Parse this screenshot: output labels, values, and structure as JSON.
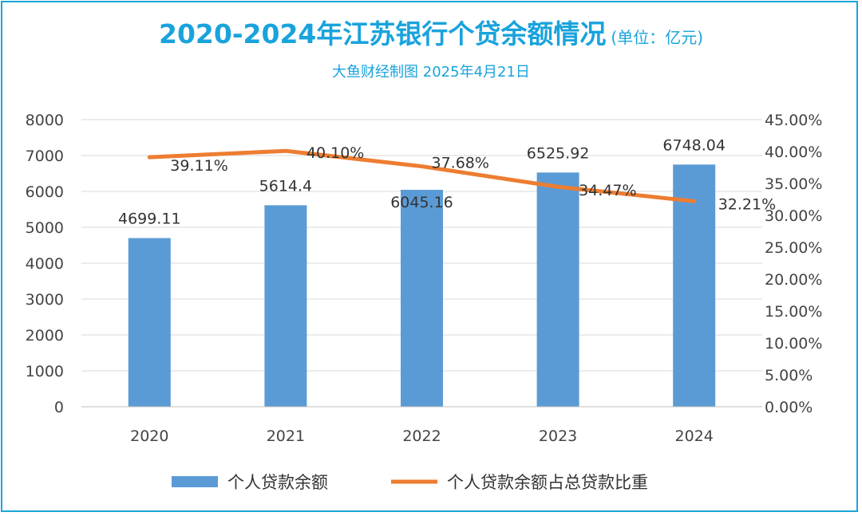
{
  "header": {
    "title": "2020-2024年江苏银行个贷余额情况",
    "unit": "(单位：亿元)",
    "subtitle": "大鱼财经制图 2025年4月21日"
  },
  "colors": {
    "accent": "#19a3dc",
    "bar": "#5b9bd5",
    "line": "#ed7d31",
    "grid": "#d9d9d9",
    "text": "#333333"
  },
  "chart_data": {
    "type": "bar",
    "title": "2020-2024年江苏银行个贷余额情况",
    "categories": [
      "2020",
      "2021",
      "2022",
      "2023",
      "2024"
    ],
    "series": [
      {
        "name": "个人贷款余额",
        "type": "bar",
        "axis": "left",
        "values": [
          4699.11,
          5614.4,
          6045.16,
          6525.92,
          6748.04
        ],
        "labels": [
          "4699.11",
          "5614.4",
          "6045.16",
          "6525.92",
          "6748.04"
        ]
      },
      {
        "name": "个人贷款余额占总贷款比重",
        "type": "line",
        "axis": "right",
        "values": [
          39.11,
          40.1,
          37.68,
          34.47,
          32.21
        ],
        "labels": [
          "39.11%",
          "40.10%",
          "37.68%",
          "34.47%",
          "32.21%"
        ]
      }
    ],
    "y_left": {
      "min": 0,
      "max": 8000,
      "step": 1000,
      "ticks": [
        "0",
        "1000",
        "2000",
        "3000",
        "4000",
        "5000",
        "6000",
        "7000",
        "8000"
      ]
    },
    "y_right": {
      "min": 0,
      "max": 45,
      "step": 5,
      "ticks": [
        "0.00%",
        "5.00%",
        "10.00%",
        "15.00%",
        "20.00%",
        "25.00%",
        "30.00%",
        "35.00%",
        "40.00%",
        "45.00%"
      ]
    },
    "grid": true,
    "legend": "bottom"
  }
}
